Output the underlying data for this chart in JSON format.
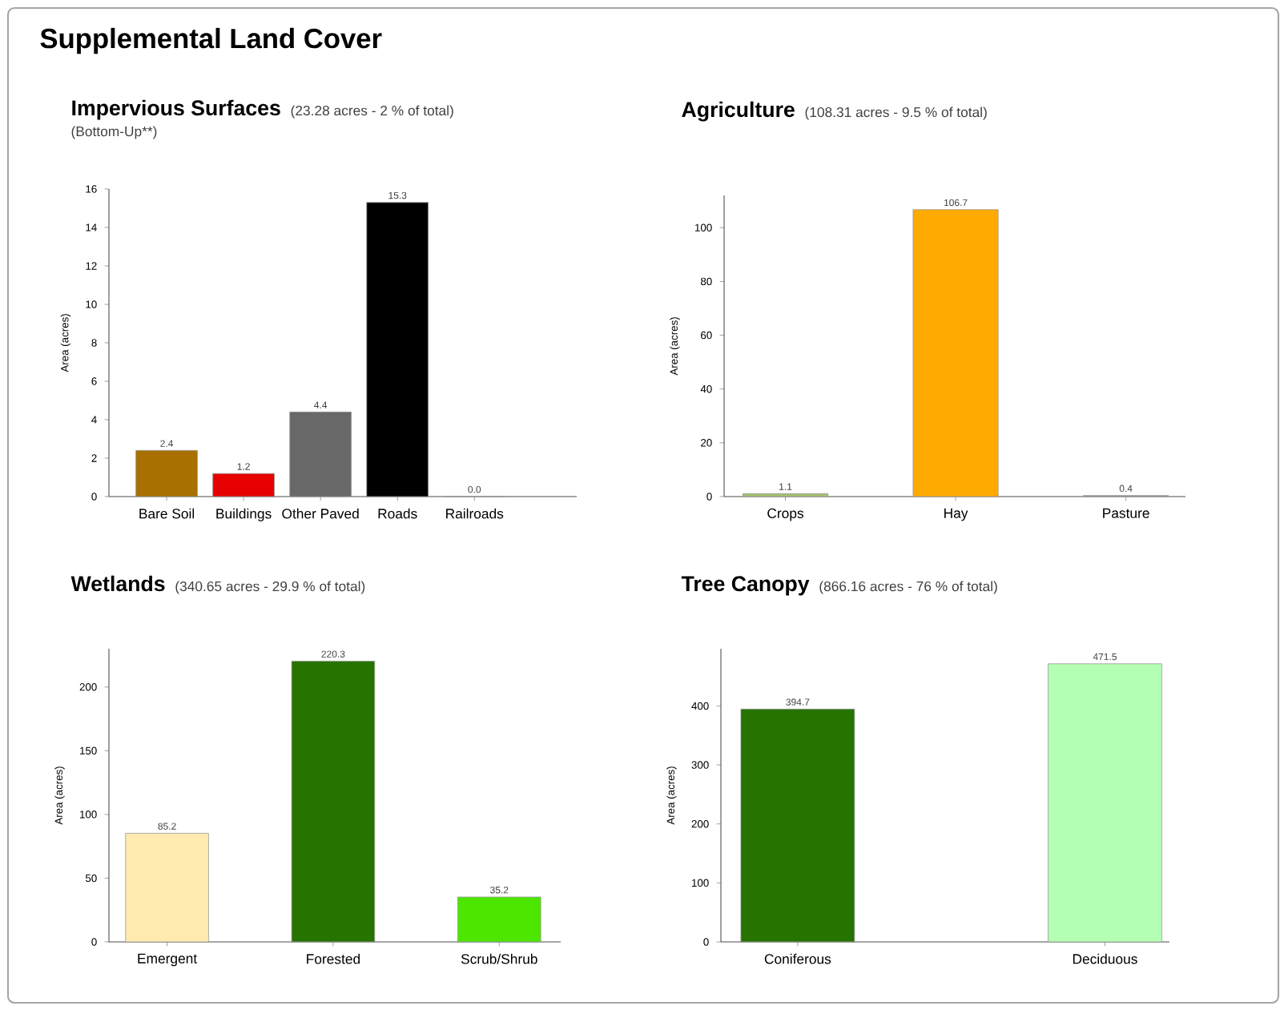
{
  "chart_data": [
    {
      "type": "other",
      "title": "Supplemental Land Cover"
    },
    {
      "type": "bar",
      "title": "Impervious Surfaces",
      "subtitle": "(23.28 acres - 2 % of total)",
      "annotations": [
        "(Bottom-Up**)"
      ],
      "ylabel": "Area (acres)",
      "categories": [
        "Bare Soil",
        "Buildings",
        "Other Paved",
        "Roads",
        "Railroads"
      ],
      "values": [
        2.4,
        1.2,
        4.4,
        15.3,
        0.0
      ],
      "value_labels": [
        "2.4",
        "1.2",
        "4.4",
        "15.3",
        "0.0"
      ],
      "colors": [
        "#a87000",
        "#e60000",
        "#686868",
        "#000000",
        "#9c9c9c"
      ],
      "ylim": [
        0,
        16
      ],
      "yticks": [
        0,
        2,
        4,
        6,
        8,
        10,
        12,
        14,
        16
      ]
    },
    {
      "type": "bar",
      "title": "Agriculture",
      "subtitle": "(108.31 acres - 9.5 % of total)",
      "ylabel": "Area (acres)",
      "categories": [
        "Crops",
        "Hay",
        "Pasture"
      ],
      "values": [
        1.1,
        106.7,
        0.4
      ],
      "value_labels": [
        "1.1",
        "106.7",
        "0.4"
      ],
      "colors": [
        "#a3c16b",
        "#ffaa00",
        "#8a8a8a"
      ],
      "ylim": [
        0,
        112
      ],
      "yticks": [
        0,
        20,
        40,
        60,
        80,
        100
      ]
    },
    {
      "type": "bar",
      "title": "Wetlands",
      "subtitle": "(340.65 acres - 29.9 % of total)",
      "ylabel": "Area (acres)",
      "categories": [
        "Emergent",
        "Forested",
        "Scrub/Shrub"
      ],
      "values": [
        85.2,
        220.3,
        35.2
      ],
      "value_labels": [
        "85.2",
        "220.3",
        "35.2"
      ],
      "colors": [
        "#ffebaf",
        "#267300",
        "#4ce600"
      ],
      "ylim": [
        0,
        230
      ],
      "yticks": [
        0,
        50,
        100,
        150,
        200
      ]
    },
    {
      "type": "bar",
      "title": "Tree Canopy",
      "subtitle": "(866.16 acres - 76 % of total)",
      "ylabel": "Area (acres)",
      "categories": [
        "Coniferous",
        "Deciduous"
      ],
      "values": [
        394.7,
        471.5
      ],
      "value_labels": [
        "394.7",
        "471.5"
      ],
      "colors": [
        "#267300",
        "#b4ffb4"
      ],
      "ylim": [
        0,
        497
      ],
      "yticks": [
        0,
        100,
        200,
        300,
        400
      ]
    }
  ]
}
